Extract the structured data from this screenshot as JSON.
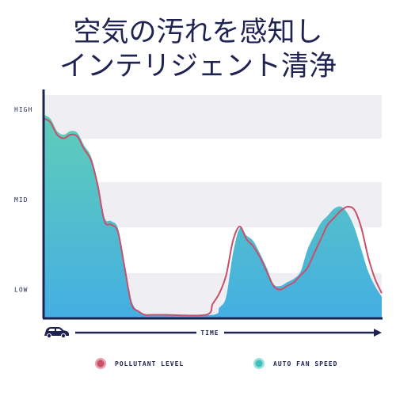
{
  "title_lines": [
    "空気の汚れを感知し",
    "インテリジェント清浄"
  ],
  "chart_data": {
    "type": "area",
    "title": "空気の汚れを感知し インテリジェント清浄",
    "xlabel": "TIME",
    "ylabel": "",
    "y_tick_labels": [
      "HIGH",
      "MID",
      "LOW"
    ],
    "y_tick_values": [
      1.0,
      0.5,
      0.0
    ],
    "ylim": [
      -0.16,
      1.08
    ],
    "xlim": [
      0,
      1
    ],
    "grid": true,
    "legend_position": "bottom",
    "series": [
      {
        "name": "POLLUTANT LEVEL",
        "kind": "line",
        "color": "#c9506a",
        "x": [
          0,
          0.02,
          0.04,
          0.06,
          0.08,
          0.1,
          0.12,
          0.14,
          0.16,
          0.18,
          0.2,
          0.22,
          0.24,
          0.26,
          0.28,
          0.3,
          0.32,
          0.34,
          0.36,
          0.48,
          0.5,
          0.52,
          0.54,
          0.56,
          0.58,
          0.6,
          0.62,
          0.64,
          0.66,
          0.68,
          0.7,
          0.72,
          0.74,
          0.76,
          0.78,
          0.8,
          0.82,
          0.84,
          0.86,
          0.88,
          0.9,
          0.92,
          0.94,
          0.96,
          0.98,
          1.0
        ],
        "values": [
          0.95,
          0.93,
          0.86,
          0.84,
          0.86,
          0.85,
          0.78,
          0.72,
          0.58,
          0.38,
          0.36,
          0.32,
          0.12,
          -0.08,
          -0.12,
          -0.14,
          -0.14,
          -0.14,
          -0.14,
          -0.14,
          -0.08,
          -0.02,
          0.08,
          0.27,
          0.35,
          0.28,
          0.24,
          0.18,
          0.1,
          0.02,
          0.0,
          0.02,
          0.04,
          0.08,
          0.12,
          0.2,
          0.28,
          0.36,
          0.4,
          0.44,
          0.46,
          0.44,
          0.34,
          0.18,
          0.06,
          -0.02
        ]
      },
      {
        "name": "AUTO FAN SPEED",
        "kind": "area",
        "color": "#3fc0bc",
        "x": [
          0,
          0.02,
          0.04,
          0.06,
          0.08,
          0.1,
          0.12,
          0.14,
          0.16,
          0.18,
          0.2,
          0.22,
          0.24,
          0.26,
          0.28,
          0.3,
          0.32,
          0.34,
          0.36,
          0.5,
          0.52,
          0.54,
          0.56,
          0.58,
          0.6,
          0.62,
          0.64,
          0.66,
          0.68,
          0.7,
          0.72,
          0.74,
          0.76,
          0.78,
          0.8,
          0.82,
          0.84,
          0.86,
          0.88,
          0.9,
          0.92,
          0.94,
          0.96,
          0.98,
          1.0
        ],
        "values": [
          0.97,
          0.95,
          0.88,
          0.86,
          0.88,
          0.87,
          0.8,
          0.74,
          0.6,
          0.4,
          0.38,
          0.34,
          0.14,
          -0.06,
          -0.12,
          -0.14,
          -0.14,
          -0.14,
          -0.14,
          -0.14,
          -0.1,
          -0.04,
          0.2,
          0.34,
          0.3,
          0.27,
          0.2,
          0.12,
          0.03,
          0.02,
          0.04,
          0.06,
          0.1,
          0.22,
          0.3,
          0.37,
          0.41,
          0.45,
          0.46,
          0.42,
          0.34,
          0.22,
          0.1,
          0.02,
          -0.04
        ]
      }
    ]
  },
  "legend": [
    {
      "label": "POLLUTANT LEVEL",
      "color": "#c9506a",
      "icon": "pollutant-dot-icon"
    },
    {
      "label": "AUTO FAN SPEED",
      "color": "#3fc0bc",
      "icon": "fan-speed-dot-icon"
    }
  ],
  "icons": {
    "vehicle": "car-icon",
    "time_arrow": "arrow-right-icon"
  },
  "colors": {
    "navy": "#1f2352",
    "band": "#efeff3",
    "line": "#c9506a",
    "fill_top": "#5fcdb8",
    "fill_bottom": "#43b0e0"
  }
}
